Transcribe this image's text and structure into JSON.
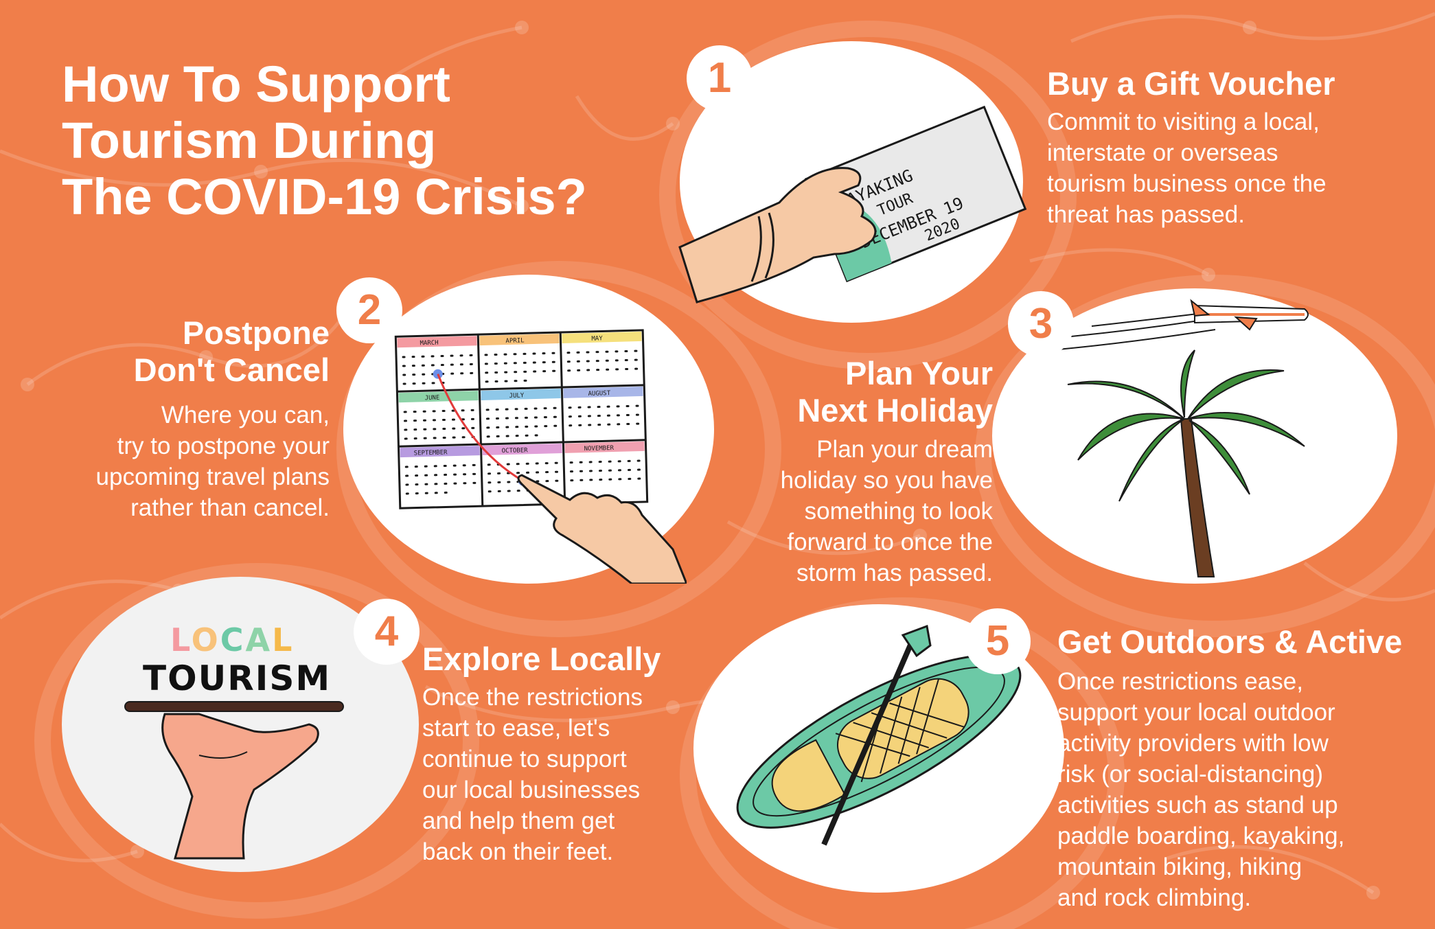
{
  "title_lines": [
    "How To Support",
    "Tourism During",
    "The COVID-19 Crisis?"
  ],
  "colors": {
    "background": "#F07E4A",
    "white": "#FFFFFF",
    "accent_green": "#6CC9A6",
    "palm_green": "#3E8E3A",
    "skin": "#F6C9A5"
  },
  "steps": [
    {
      "number": "1",
      "heading": "Buy a Gift Voucher",
      "body_lines": [
        "Commit to visiting a local,",
        "interstate or overseas",
        "tourism business once the",
        "threat has passed."
      ],
      "illustration": "hand-holding-voucher",
      "voucher_lines": [
        "KAYAKING",
        "TOUR",
        "DECEMBER 19",
        "2020"
      ]
    },
    {
      "number": "2",
      "heading_lines": [
        "Postpone",
        "Don't Cancel"
      ],
      "body_lines": [
        "Where you can,",
        "try to postpone your",
        "upcoming travel plans",
        "rather than cancel."
      ],
      "illustration": "calendar-with-pointing-hand",
      "months": [
        "MARCH",
        "APRIL",
        "MAY",
        "JUNE",
        "JULY",
        "AUGUST",
        "SEPTEMBER",
        "OCTOBER",
        "NOVEMBER"
      ]
    },
    {
      "number": "3",
      "heading_lines": [
        "Plan Your",
        "Next Holiday"
      ],
      "body_lines": [
        "Plan your dream",
        "holiday so you have",
        "something to look",
        "forward to once the",
        "storm has passed."
      ],
      "illustration": "palm-tree-and-airplane"
    },
    {
      "number": "4",
      "heading": "Explore Locally",
      "body_lines": [
        "Once the restrictions",
        "start to ease, let's",
        "continue to support",
        "our local businesses",
        "and help them get",
        "back on their feet."
      ],
      "illustration": "hand-holding-local-tourism-sign",
      "sign_word_1": "LOCAL",
      "sign_word_2": "TOURISM"
    },
    {
      "number": "5",
      "heading": "Get Outdoors & Active",
      "body_lines": [
        "Once restrictions ease,",
        "support your local outdoor",
        "activity providers with low",
        "risk (or social-distancing)",
        "activities such as stand up",
        "paddle boarding, kayaking,",
        "mountain biking, hiking",
        "and rock climbing."
      ],
      "illustration": "paddle-board-and-paddle"
    }
  ]
}
